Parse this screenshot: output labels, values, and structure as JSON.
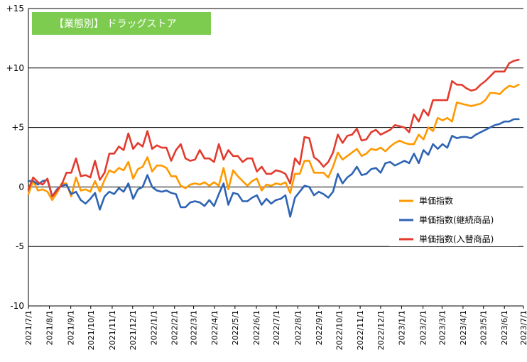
{
  "chart_data": {
    "type": "line",
    "title": "【業態別】 ドラッグストア",
    "colors": {
      "title_bg": "#7dcc4f",
      "grid": "#000000"
    },
    "ylim": [
      -10,
      15
    ],
    "y_ticks": [
      {
        "value": 15,
        "label": "+15"
      },
      {
        "value": 10,
        "label": "+10"
      },
      {
        "value": 5,
        "label": "+5"
      },
      {
        "value": 0,
        "label": "0"
      },
      {
        "value": -5,
        "label": "-5"
      },
      {
        "value": -10,
        "label": "-10"
      }
    ],
    "x_range": [
      0,
      104
    ],
    "x_ticks": [
      {
        "pos": 0,
        "label": "2021/7/1"
      },
      {
        "pos": 4.4,
        "label": "2021/8/1"
      },
      {
        "pos": 8.9,
        "label": "2021/9/1"
      },
      {
        "pos": 13.1,
        "label": "2021/10/1"
      },
      {
        "pos": 17.6,
        "label": "2021/11/1"
      },
      {
        "pos": 21.9,
        "label": "2021/12/1"
      },
      {
        "pos": 26.3,
        "label": "2022/1/1"
      },
      {
        "pos": 30.7,
        "label": "2022/2/1"
      },
      {
        "pos": 34.7,
        "label": "2022/3/1"
      },
      {
        "pos": 39.1,
        "label": "2022/4/1"
      },
      {
        "pos": 43.4,
        "label": "2022/5/1"
      },
      {
        "pos": 47.9,
        "label": "2022/6/1"
      },
      {
        "pos": 52.1,
        "label": "2022/7/1"
      },
      {
        "pos": 56.6,
        "label": "2022/8/1"
      },
      {
        "pos": 61.0,
        "label": "2022/9/1"
      },
      {
        "pos": 65.3,
        "label": "2022/10/1"
      },
      {
        "pos": 69.7,
        "label": "2022/11/1"
      },
      {
        "pos": 74.0,
        "label": "2022/12/1"
      },
      {
        "pos": 78.4,
        "label": "2023/1/1"
      },
      {
        "pos": 82.9,
        "label": "2023/2/1"
      },
      {
        "pos": 86.9,
        "label": "2023/3/1"
      },
      {
        "pos": 91.3,
        "label": "2023/4/1"
      },
      {
        "pos": 95.6,
        "label": "2023/5/1"
      },
      {
        "pos": 100.0,
        "label": "2023/6/1"
      },
      {
        "pos": 104.0,
        "label": "2023/7/1"
      }
    ],
    "legend_position": "right",
    "series": [
      {
        "name": "単価指数",
        "color": "#ff9900",
        "values": [
          -0.6,
          0.5,
          -0.3,
          -0.2,
          -0.4,
          -1.1,
          -0.5,
          0.3,
          0.3,
          -0.8,
          0.8,
          -0.3,
          -0.2,
          -0.4,
          0.5,
          -0.4,
          0.6,
          1.4,
          1.2,
          1.6,
          1.4,
          2.1,
          0.7,
          1.5,
          1.7,
          2.5,
          1.3,
          1.8,
          1.8,
          1.6,
          0.9,
          0.9,
          0.1,
          -0.1,
          0.2,
          0.3,
          0.2,
          0.4,
          0.1,
          0.4,
          0.1,
          1.6,
          -0.2,
          1.4,
          0.9,
          0.5,
          0.1,
          0.5,
          0.7,
          -0.3,
          0.2,
          0.1,
          0.3,
          0.2,
          0.4,
          -0.5,
          1.1,
          1.1,
          2.2,
          2.2,
          1.2,
          1.2,
          1.2,
          0.8,
          1.7,
          2.9,
          2.3,
          2.6,
          2.9,
          3.2,
          2.6,
          2.8,
          3.2,
          3.1,
          3.3,
          3.0,
          3.4,
          3.7,
          3.9,
          3.7,
          3.6,
          3.6,
          4.4,
          4.0,
          5.0,
          4.7,
          5.8,
          5.6,
          5.8,
          5.5,
          7.1,
          7.0,
          6.9,
          6.8,
          6.9,
          7.0,
          7.3,
          7.9,
          7.9,
          7.8,
          8.2,
          8.5,
          8.4,
          8.6
        ]
      },
      {
        "name": "単価指数(継続商品)",
        "color": "#2e64b4",
        "values": [
          0.5,
          0.5,
          0.2,
          0.5,
          0.6,
          -0.8,
          -0.2,
          0.1,
          0.2,
          -0.6,
          -0.4,
          -1.1,
          -1.4,
          -1.0,
          -0.5,
          -1.9,
          -0.8,
          -0.4,
          -0.6,
          -0.1,
          -0.4,
          0.3,
          -1.0,
          -0.2,
          0.0,
          1.0,
          0.0,
          -0.3,
          -0.4,
          -0.3,
          -0.5,
          -0.6,
          -1.7,
          -1.7,
          -1.3,
          -1.2,
          -1.3,
          -1.6,
          -1.1,
          -1.6,
          -0.6,
          0.3,
          -1.5,
          -0.5,
          -0.6,
          -1.2,
          -1.2,
          -0.9,
          -0.7,
          -1.5,
          -1.0,
          -1.4,
          -1.1,
          -1.0,
          -0.7,
          -2.5,
          -0.9,
          -0.4,
          0.1,
          0.0,
          -0.7,
          -0.4,
          -0.6,
          -0.9,
          -0.4,
          1.1,
          0.3,
          0.8,
          1.1,
          1.7,
          1.0,
          1.1,
          1.5,
          1.6,
          1.2,
          2.0,
          2.1,
          1.8,
          2.0,
          2.2,
          2.0,
          2.8,
          2.0,
          3.1,
          2.7,
          3.6,
          3.2,
          3.6,
          3.3,
          4.3,
          4.1,
          4.2,
          4.2,
          4.1,
          4.4,
          4.6,
          4.8,
          5.0,
          5.2,
          5.3,
          5.5,
          5.5,
          5.7,
          5.7
        ]
      },
      {
        "name": "単価指数(入替商品)",
        "color": "#e23b2e",
        "values": [
          -0.2,
          0.8,
          0.4,
          0.2,
          0.7,
          -0.8,
          -0.3,
          0.2,
          1.2,
          1.2,
          2.4,
          0.9,
          1.0,
          0.8,
          2.2,
          0.6,
          1.2,
          2.8,
          2.8,
          3.4,
          3.1,
          4.5,
          3.2,
          3.7,
          3.4,
          4.7,
          3.2,
          3.5,
          3.3,
          3.3,
          2.2,
          3.1,
          3.6,
          2.4,
          2.2,
          2.3,
          3.1,
          2.4,
          2.4,
          2.1,
          3.6,
          2.3,
          3.1,
          2.6,
          2.6,
          2.1,
          2.4,
          2.4,
          1.3,
          1.7,
          1.1,
          1.1,
          1.4,
          1.3,
          1.1,
          0.3,
          2.4,
          1.9,
          4.2,
          4.1,
          2.5,
          2.2,
          1.7,
          2.1,
          2.9,
          4.4,
          3.7,
          4.3,
          4.4,
          4.9,
          3.9,
          4.0,
          4.6,
          4.8,
          4.4,
          4.6,
          4.8,
          5.2,
          5.1,
          5.0,
          4.6,
          6.1,
          5.5,
          6.5,
          6.0,
          7.3,
          7.3,
          7.3,
          7.3,
          8.9,
          8.6,
          8.6,
          8.3,
          8.1,
          8.2,
          8.6,
          8.9,
          9.3,
          9.7,
          9.7,
          9.7,
          10.4,
          10.6,
          10.7
        ]
      }
    ]
  }
}
